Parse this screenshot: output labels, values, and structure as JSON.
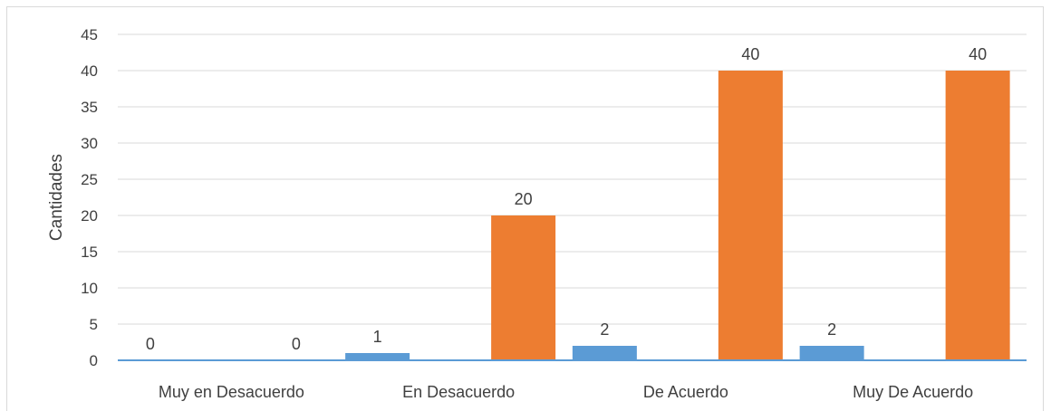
{
  "chart_data": {
    "type": "bar",
    "title": "",
    "xlabel": "",
    "ylabel": "Cantidades",
    "ylim": [
      0,
      45
    ],
    "yticks": [
      0,
      5,
      10,
      15,
      20,
      25,
      30,
      35,
      40,
      45
    ],
    "grid": true,
    "legend": "none",
    "categories": [
      "Muy en Desacuerdo",
      "En Desacuerdo",
      "De Acuerdo",
      "Muy De Acuerdo"
    ],
    "series": [
      {
        "values": [
          0,
          1,
          2,
          2
        ],
        "data_labels": [
          "0",
          "1",
          "2",
          "2"
        ],
        "color": "#5B9BD5"
      },
      {
        "values": [
          0,
          20,
          40,
          40
        ],
        "data_labels": [
          "0",
          "20",
          "40",
          "40"
        ],
        "color": "#ED7D31"
      }
    ]
  }
}
